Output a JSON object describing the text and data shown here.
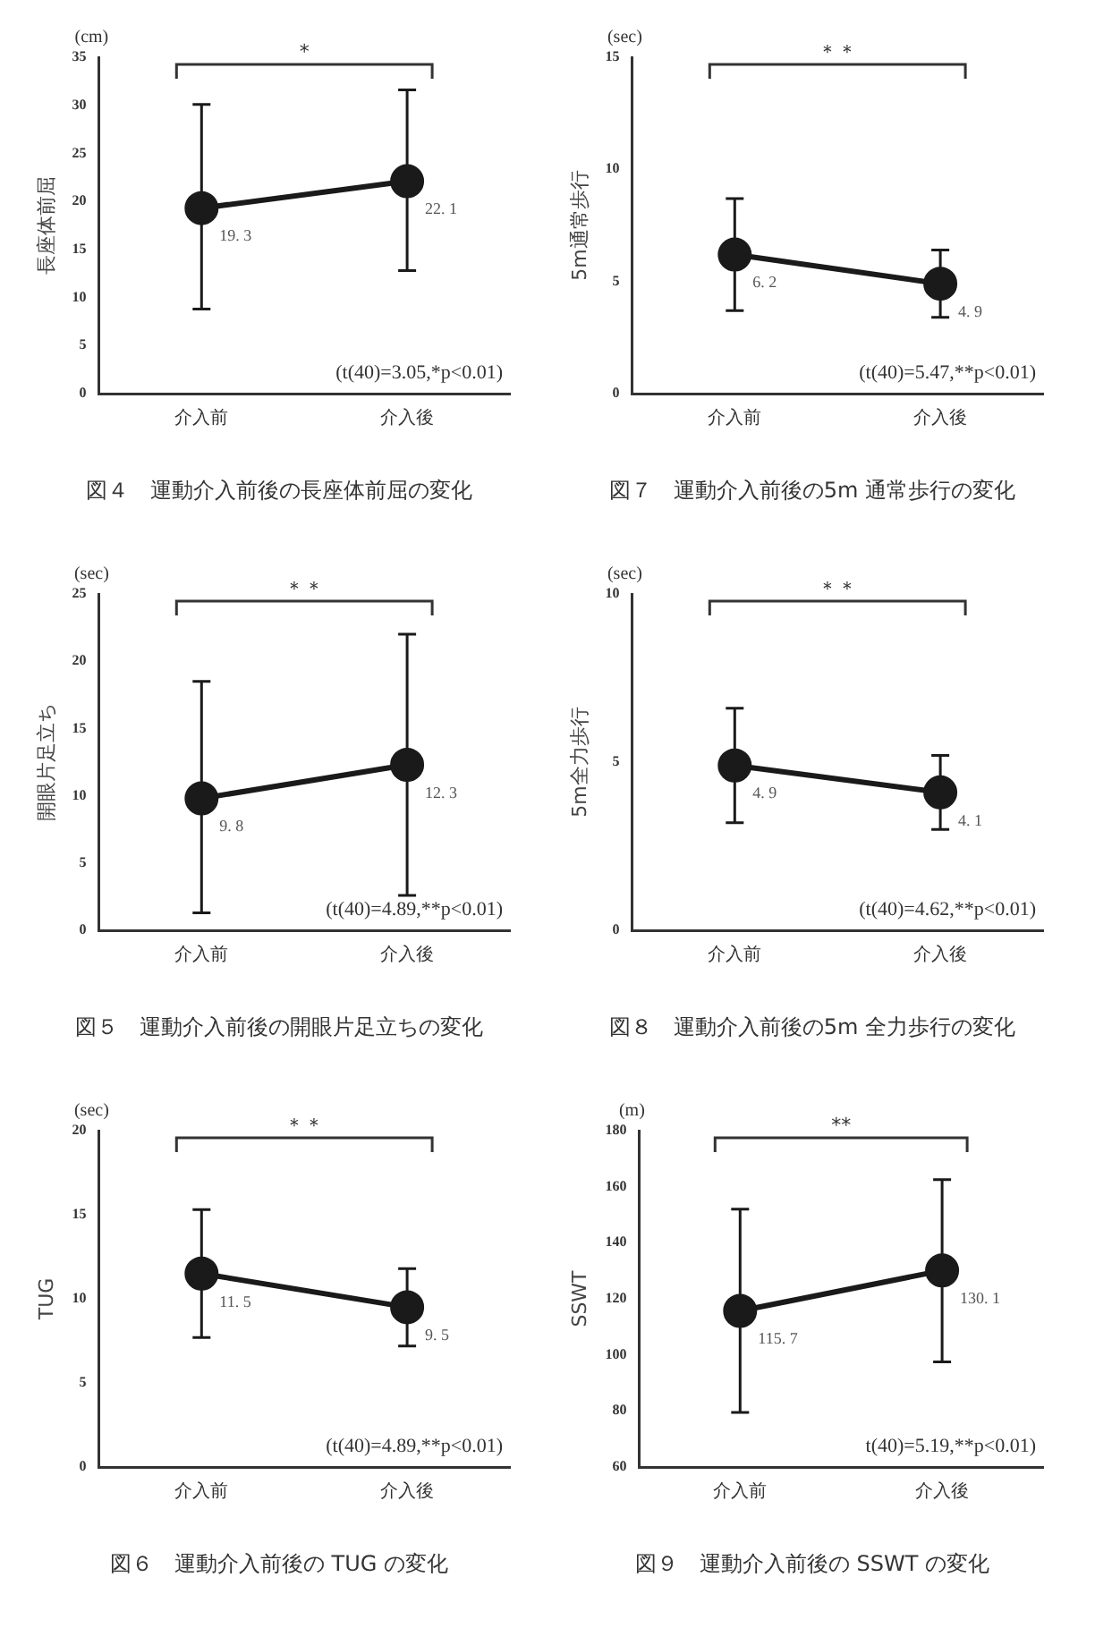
{
  "chart_data": [
    {
      "type": "line",
      "title": "図４　運動介入前後の長座体前屈の変化",
      "ylabel": "長座体前屈",
      "categories": [
        "介入前",
        "介入後"
      ],
      "series": [
        {
          "color": "#1a1a1a",
          "values": [
            19.3,
            22.1
          ],
          "errors": [
            [
              8.8,
              30.1
            ],
            [
              12.8,
              31.6
            ]
          ]
        }
      ],
      "ylim": [
        0,
        35
      ],
      "yticks": [
        0,
        5,
        10,
        15,
        20,
        25,
        30,
        35
      ],
      "grid": false,
      "legend": false,
      "marker": "circle",
      "line_style": "solid",
      "data_labels": true,
      "annotations": [
        "(cm)",
        "*",
        "(t(40)=3.05,*p<0.01)"
      ]
    },
    {
      "type": "line",
      "title": "図７　運動介入前後の5m 通常歩行の変化",
      "ylabel": "5m通常歩行",
      "categories": [
        "介入前",
        "介入後"
      ],
      "series": [
        {
          "color": "#1a1a1a",
          "values": [
            6.2,
            4.9
          ],
          "errors": [
            [
              3.7,
              8.7
            ],
            [
              3.4,
              6.4
            ]
          ]
        }
      ],
      "ylim": [
        0,
        15
      ],
      "yticks": [
        0,
        5,
        10,
        15
      ],
      "grid": false,
      "legend": false,
      "marker": "circle",
      "line_style": "solid",
      "data_labels": true,
      "annotations": [
        "(sec)",
        "＊＊",
        "(t(40)=5.47,**p<0.01)"
      ]
    },
    {
      "type": "line",
      "title": "図５　運動介入前後の開眼片足立ちの変化",
      "ylabel": "開眼片足立ち",
      "categories": [
        "介入前",
        "介入後"
      ],
      "series": [
        {
          "color": "#1a1a1a",
          "values": [
            9.8,
            12.3
          ],
          "errors": [
            [
              1.3,
              18.5
            ],
            [
              2.6,
              22.0
            ]
          ]
        }
      ],
      "ylim": [
        0,
        25
      ],
      "yticks": [
        0,
        5,
        10,
        15,
        20,
        25
      ],
      "grid": false,
      "legend": false,
      "marker": "circle",
      "line_style": "solid",
      "data_labels": true,
      "annotations": [
        "(sec)",
        "＊＊",
        "(t(40)=4.89,**p<0.01)"
      ]
    },
    {
      "type": "line",
      "title": "図８　運動介入前後の5m 全力歩行の変化",
      "ylabel": "5m全力歩行",
      "categories": [
        "介入前",
        "介入後"
      ],
      "series": [
        {
          "color": "#1a1a1a",
          "values": [
            4.9,
            4.1
          ],
          "errors": [
            [
              3.2,
              6.6
            ],
            [
              3.0,
              5.2
            ]
          ]
        }
      ],
      "ylim": [
        0,
        10
      ],
      "yticks": [
        0,
        5,
        10
      ],
      "grid": false,
      "legend": false,
      "marker": "circle",
      "line_style": "solid",
      "data_labels": true,
      "annotations": [
        "(sec)",
        "＊＊",
        "(t(40)=4.62,**p<0.01)"
      ]
    },
    {
      "type": "line",
      "title": "図６　運動介入前後の TUG の変化",
      "ylabel": "TUG",
      "categories": [
        "介入前",
        "介入後"
      ],
      "series": [
        {
          "color": "#1a1a1a",
          "values": [
            11.5,
            9.5
          ],
          "errors": [
            [
              7.7,
              15.3
            ],
            [
              7.2,
              11.8
            ]
          ]
        }
      ],
      "ylim": [
        0,
        20
      ],
      "yticks": [
        0,
        5,
        10,
        15,
        20
      ],
      "grid": false,
      "legend": false,
      "marker": "circle",
      "line_style": "solid",
      "data_labels": true,
      "annotations": [
        "(sec)",
        "＊＊",
        "(t(40)=4.89,**p<0.01)"
      ]
    },
    {
      "type": "line",
      "title": "図９　運動介入前後の SSWT の変化",
      "ylabel": "SSWT",
      "categories": [
        "介入前",
        "介入後"
      ],
      "series": [
        {
          "color": "#1a1a1a",
          "values": [
            115.7,
            130.1
          ],
          "errors": [
            [
              79.5,
              152
            ],
            [
              97.5,
              162.5
            ]
          ]
        }
      ],
      "ylim": [
        60,
        180
      ],
      "yticks": [
        60,
        80,
        100,
        120,
        140,
        160,
        180
      ],
      "grid": false,
      "legend": false,
      "marker": "circle",
      "line_style": "solid",
      "data_labels": true,
      "annotations": [
        "(m)",
        "**",
        "t(40)=5.19,**p<0.01)"
      ]
    }
  ]
}
